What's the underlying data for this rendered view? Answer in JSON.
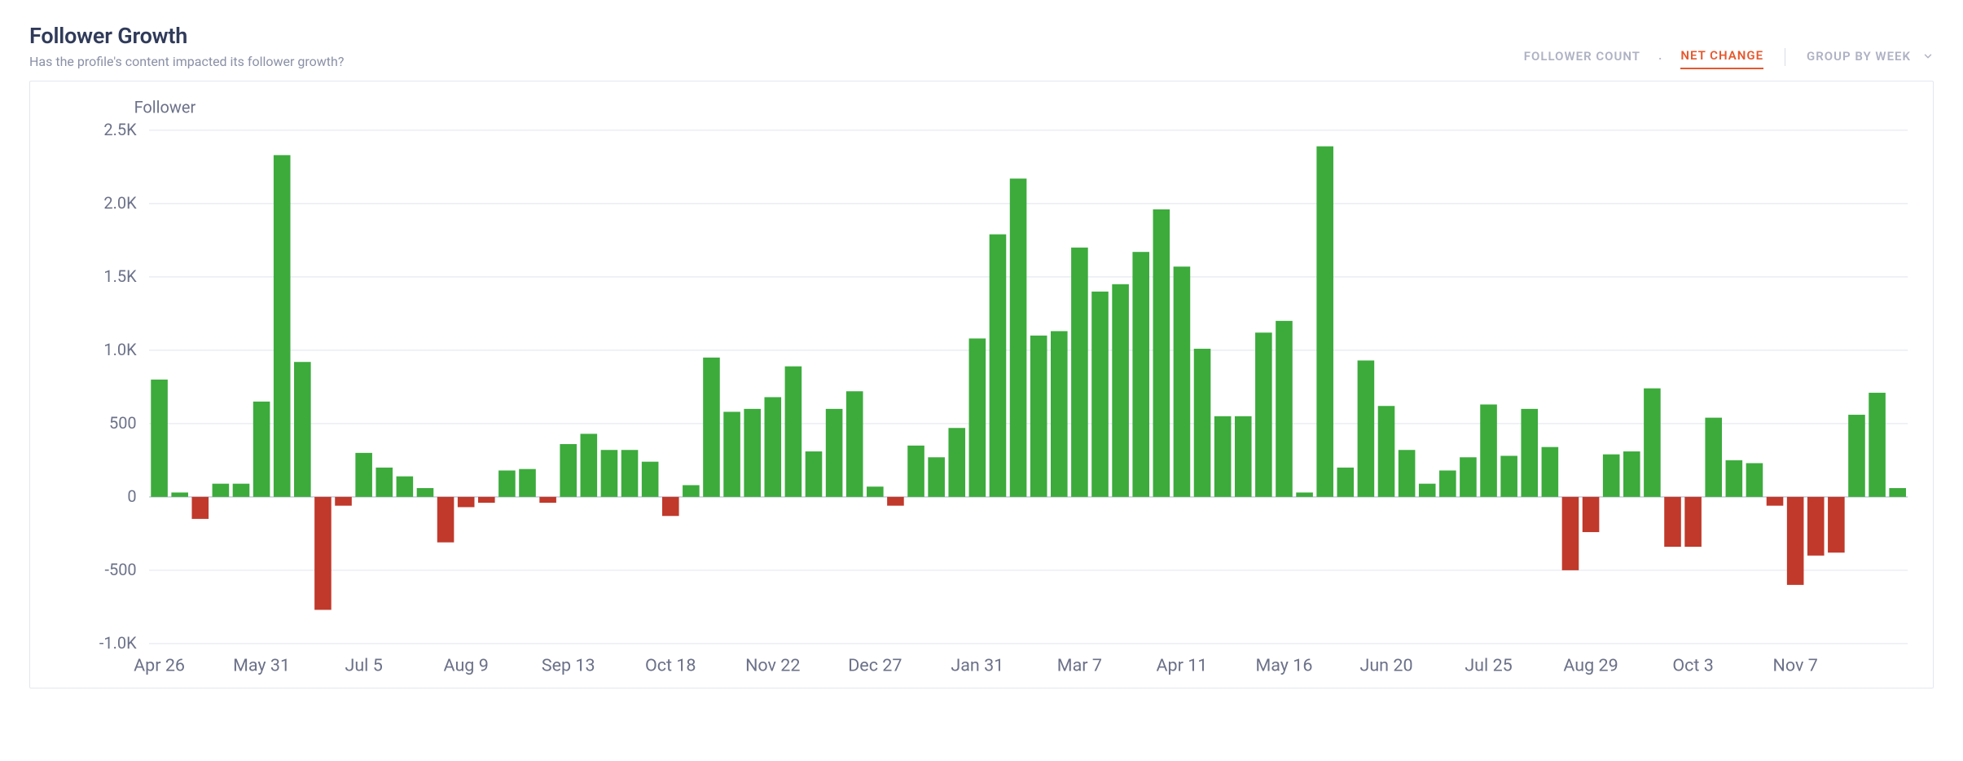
{
  "header": {
    "title": "Follower Growth",
    "subtitle": "Has the profile's content impacted its follower growth?"
  },
  "tabs": {
    "follower_count": "FOLLOWER COUNT",
    "net_change": "NET CHANGE",
    "group_by": "GROUP BY WEEK",
    "separator": "·"
  },
  "chart": {
    "type": "bar",
    "y_axis_title": "Follower",
    "ylim": [
      -1000,
      2500
    ],
    "yticks": [
      {
        "v": -1000,
        "label": "-1.0K"
      },
      {
        "v": -500,
        "label": "-500"
      },
      {
        "v": 0,
        "label": "0"
      },
      {
        "v": 500,
        "label": "500"
      },
      {
        "v": 1000,
        "label": "1.0K"
      },
      {
        "v": 1500,
        "label": "1.5K"
      },
      {
        "v": 2000,
        "label": "2.0K"
      },
      {
        "v": 2500,
        "label": "2.5K"
      }
    ],
    "xtick_labels": [
      "Apr 26",
      "May 31",
      "Jul 5",
      "Aug 9",
      "Sep 13",
      "Oct 18",
      "Nov 22",
      "Dec 27",
      "Jan 31",
      "Mar 7",
      "Apr 11",
      "May 16",
      "Jun 20",
      "Jul 25",
      "Aug 29",
      "Oct 3",
      "Nov 7"
    ],
    "xtick_positions": [
      0,
      5,
      10,
      15,
      20,
      25,
      30,
      35,
      40,
      45,
      50,
      55,
      60,
      65,
      70,
      75,
      80
    ],
    "positive_color": "#3cab3c",
    "negative_color": "#c0392b",
    "background_color": "#ffffff",
    "grid_color": "#eceef4",
    "zero_line_color": "#c8ccd9",
    "text_color": "#6b7189",
    "bar_gap_ratio": 0.18,
    "values": [
      800,
      30,
      -150,
      90,
      90,
      650,
      2330,
      920,
      -770,
      -60,
      300,
      200,
      140,
      60,
      -310,
      -70,
      -40,
      180,
      190,
      -40,
      360,
      430,
      320,
      320,
      240,
      -130,
      80,
      950,
      580,
      600,
      680,
      890,
      310,
      600,
      720,
      70,
      -60,
      350,
      270,
      470,
      1080,
      1790,
      2170,
      1100,
      1130,
      1700,
      1400,
      1450,
      1670,
      1960,
      1570,
      1010,
      550,
      550,
      1120,
      1200,
      30,
      2390,
      200,
      930,
      620,
      320,
      90,
      180,
      270,
      630,
      280,
      600,
      340,
      -500,
      -240,
      290,
      310,
      740,
      -340,
      -340,
      540,
      250,
      230,
      -60,
      -600,
      -400,
      -380,
      560,
      710,
      60
    ]
  }
}
